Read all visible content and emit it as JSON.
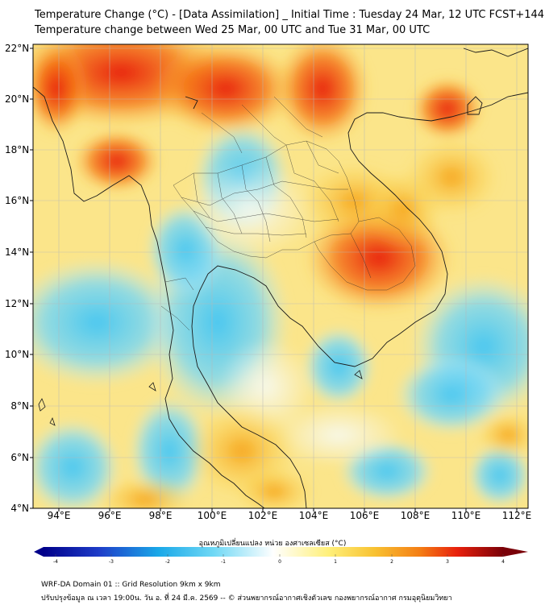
{
  "title_line1": "Temperature Change (°C) - [Data Assimilation] _ Initial Time : Tuesday 24 Mar, 12 UTC FCST+144",
  "title_line2": "Temperature change between Wed 25 Mar, 00 UTC and Tue 31 Mar, 00 UTC",
  "lat_labels": [
    "22°N",
    "20°N",
    "18°N",
    "16°N",
    "14°N",
    "12°N",
    "10°N",
    "8°N",
    "6°N",
    "4°N"
  ],
  "lon_labels": [
    "94°E",
    "96°E",
    "98°E",
    "100°E",
    "102°E",
    "104°E",
    "106°E",
    "108°E",
    "110°E",
    "112°E"
  ],
  "colorbar": {
    "title": "อุณหภูมิเปลี่ยนแปลง หน่วย องศาเซลเซียส (°C)",
    "min": -4,
    "max": 4,
    "ticks": [
      "-4",
      "-3",
      "-2",
      "-1",
      "0",
      "1",
      "2",
      "3",
      "4"
    ]
  },
  "footer_line1": "WRF-DA Domain 01 :: Grid Resolution 9km x 9km",
  "footer_line2": "ปรับปรุงข้อมูล ณ เวลา 19:00น. วัน อ. ที่ 24 มี.ค. 2569 -- © ส่วนพยากรณ์อากาศเชิงตัวเลข กองพยากรณ์อากาศ กรมอุตุนิยมวิทยา"
}
